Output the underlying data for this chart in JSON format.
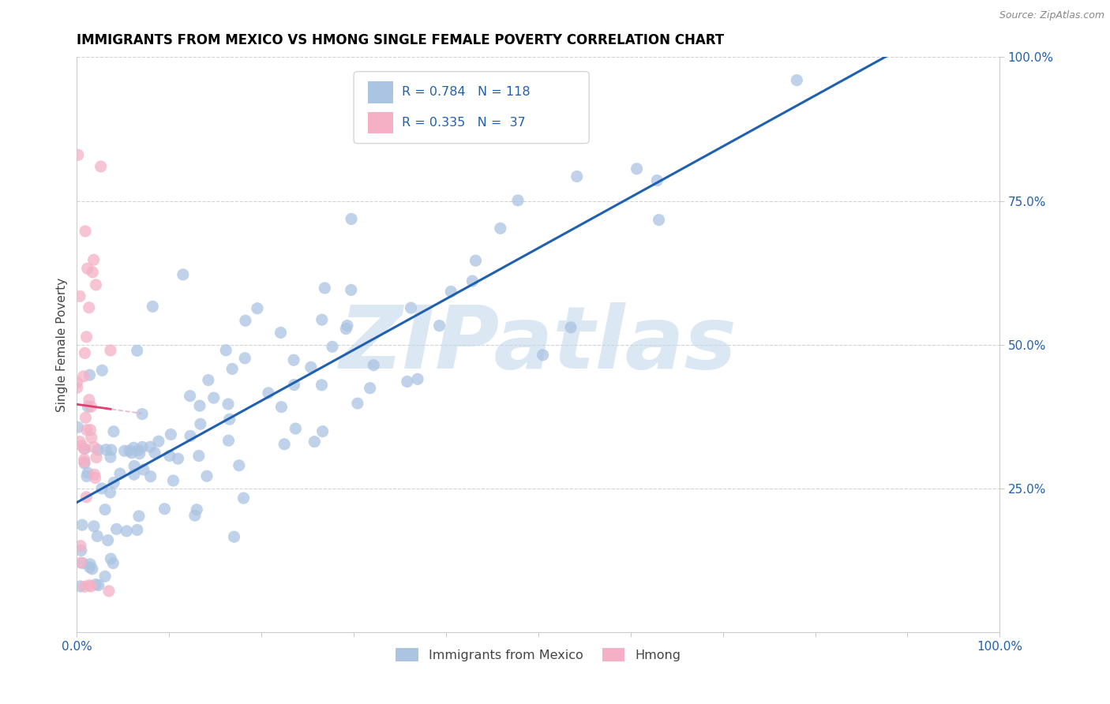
{
  "title": "IMMIGRANTS FROM MEXICO VS HMONG SINGLE FEMALE POVERTY CORRELATION CHART",
  "source": "Source: ZipAtlas.com",
  "ylabel": "Single Female Poverty",
  "legend_blue_r": "R = 0.784",
  "legend_blue_n": "N = 118",
  "legend_pink_r": "R = 0.335",
  "legend_pink_n": "N =  37",
  "legend_label_blue": "Immigrants from Mexico",
  "legend_label_pink": "Hmong",
  "blue_r": 0.784,
  "pink_r": 0.335,
  "blue_n": 118,
  "pink_n": 37,
  "blue_scatter_color": "#aac4e2",
  "pink_scatter_color": "#f5b0c5",
  "blue_line_color": "#2060b0",
  "pink_line_color": "#e04070",
  "pink_dash_color": "#e090a8",
  "watermark_color": "#c5d8ed",
  "watermark_text": "ZIPatlas",
  "grid_color": "#c8c8c8",
  "title_fontsize": 12,
  "axis_label_fontsize": 11,
  "tick_fontsize": 11,
  "xmin": 0.0,
  "xmax": 1.0,
  "ymin": 0.0,
  "ymax": 1.0,
  "blue_seed": 42,
  "pink_seed": 99
}
